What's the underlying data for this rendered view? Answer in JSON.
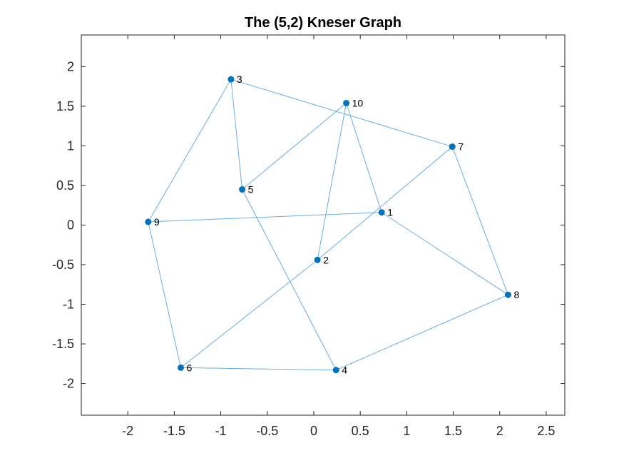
{
  "chart_data": {
    "type": "graph",
    "title": "The (5,2) Kneser Graph",
    "xlim": [
      -2.5,
      2.7
    ],
    "ylim": [
      -2.4,
      2.4
    ],
    "xticks": [
      -2,
      -1.5,
      -1,
      -0.5,
      0,
      0.5,
      1,
      1.5,
      2,
      2.5
    ],
    "xtick_labels": [
      "-2",
      "-1.5",
      "-1",
      "-0.5",
      "0",
      "0.5",
      "1",
      "1.5",
      "2",
      "2.5"
    ],
    "yticks": [
      2,
      1.5,
      1,
      0.5,
      0,
      -0.5,
      -1,
      -1.5,
      -2
    ],
    "ytick_labels": [
      "2",
      "1.5",
      "1",
      "0.5",
      "0",
      "-0.5",
      "-1",
      "-1.5",
      "-2"
    ],
    "nodes": [
      {
        "id": "1",
        "x": 0.73,
        "y": 0.16
      },
      {
        "id": "2",
        "x": 0.04,
        "y": -0.44
      },
      {
        "id": "3",
        "x": -0.89,
        "y": 1.84
      },
      {
        "id": "4",
        "x": 0.24,
        "y": -1.83
      },
      {
        "id": "5",
        "x": -0.77,
        "y": 0.45
      },
      {
        "id": "6",
        "x": -1.43,
        "y": -1.8
      },
      {
        "id": "7",
        "x": 1.49,
        "y": 0.99
      },
      {
        "id": "8",
        "x": 2.09,
        "y": -0.88
      },
      {
        "id": "9",
        "x": -1.78,
        "y": 0.04
      },
      {
        "id": "10",
        "x": 0.35,
        "y": 1.54
      }
    ],
    "edges": [
      [
        "3",
        "5"
      ],
      [
        "3",
        "9"
      ],
      [
        "3",
        "7"
      ],
      [
        "10",
        "5"
      ],
      [
        "10",
        "1"
      ],
      [
        "10",
        "2"
      ],
      [
        "7",
        "2"
      ],
      [
        "7",
        "8"
      ],
      [
        "9",
        "1"
      ],
      [
        "9",
        "6"
      ],
      [
        "1",
        "8"
      ],
      [
        "5",
        "4"
      ],
      [
        "6",
        "4"
      ],
      [
        "6",
        "2"
      ],
      [
        "4",
        "8"
      ]
    ],
    "colors": {
      "node": "#0072bd",
      "edge": "#6aaee3"
    }
  }
}
